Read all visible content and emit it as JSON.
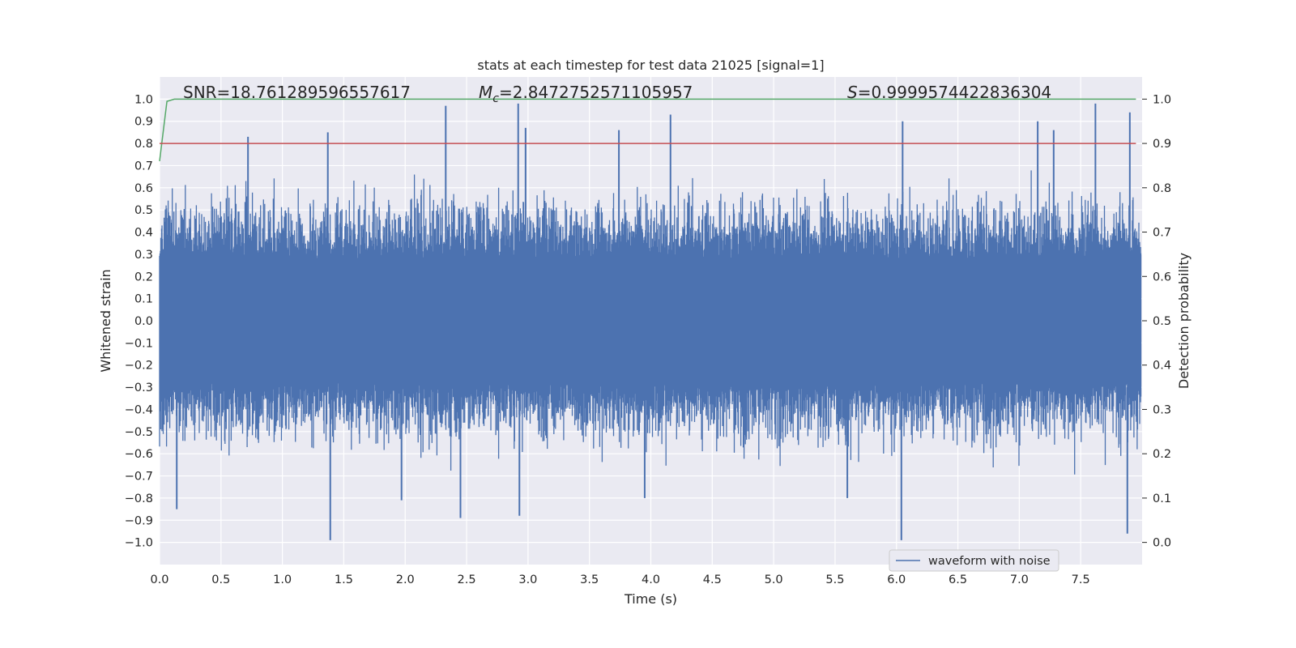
{
  "chart_data": {
    "type": "line",
    "title": "stats at each timestep for test data 21025 [signal=1]",
    "xlabel": "Time (s)",
    "ylabel": "Whitened strain",
    "ylabel_right": "Detection probability",
    "xlim": [
      0.0,
      8.0
    ],
    "ylim": [
      -1.1,
      1.1
    ],
    "ylim_right": [
      -0.05,
      1.05
    ],
    "xticks": [
      "0.0",
      "0.5",
      "1.0",
      "1.5",
      "2.0",
      "2.5",
      "3.0",
      "3.5",
      "4.0",
      "4.5",
      "5.0",
      "5.5",
      "6.0",
      "6.5",
      "7.0",
      "7.5"
    ],
    "yticks": [
      "−1.0",
      "−0.9",
      "−0.8",
      "−0.7",
      "−0.6",
      "−0.5",
      "−0.4",
      "−0.3",
      "−0.2",
      "−0.1",
      "0.0",
      "0.1",
      "0.2",
      "0.3",
      "0.4",
      "0.5",
      "0.6",
      "0.7",
      "0.8",
      "0.9",
      "1.0"
    ],
    "yticks_right": [
      "0.0",
      "0.1",
      "0.2",
      "0.3",
      "0.4",
      "0.5",
      "0.6",
      "0.7",
      "0.8",
      "0.9",
      "1.0"
    ],
    "grid": true,
    "legend_position": "lower-right",
    "annotations": {
      "snr": "SNR=18.761289596557617",
      "mc_prefix": "M",
      "mc_sub": "c",
      "mc_value": "=2.8472752571105957",
      "s_prefix": "S",
      "s_value": "=0.9999574422836304"
    },
    "series": [
      {
        "name": "waveform with noise",
        "axis": "left",
        "color": "#4c72b0",
        "description_values": {
          "x_range": [
            0.0,
            7.99
          ],
          "y_min": -0.99,
          "y_max": 0.98
        },
        "peaks": [
          {
            "x": 0.72,
            "y": 0.83
          },
          {
            "x": 1.37,
            "y": 0.85
          },
          {
            "x": 2.33,
            "y": 0.97
          },
          {
            "x": 2.92,
            "y": 0.98
          },
          {
            "x": 2.98,
            "y": 0.87
          },
          {
            "x": 3.74,
            "y": 0.86
          },
          {
            "x": 4.16,
            "y": 0.93
          },
          {
            "x": 6.05,
            "y": 0.9
          },
          {
            "x": 7.62,
            "y": 0.98
          },
          {
            "x": 7.9,
            "y": 0.94
          },
          {
            "x": 7.15,
            "y": 0.9
          },
          {
            "x": 7.28,
            "y": 0.86
          }
        ],
        "troughs": [
          {
            "x": 1.39,
            "y": -0.99
          },
          {
            "x": 6.04,
            "y": -0.99
          },
          {
            "x": 7.88,
            "y": -0.96
          },
          {
            "x": 0.14,
            "y": -0.85
          },
          {
            "x": 2.93,
            "y": -0.88
          },
          {
            "x": 2.45,
            "y": -0.89
          },
          {
            "x": 1.97,
            "y": -0.81
          },
          {
            "x": 3.95,
            "y": -0.8
          },
          {
            "x": 5.6,
            "y": -0.8
          }
        ]
      },
      {
        "name": "",
        "axis": "right",
        "color": "#55a868",
        "x": [
          0.0,
          0.06,
          0.12,
          7.95
        ],
        "y": [
          0.86,
          0.995,
          1.0,
          1.0
        ]
      },
      {
        "name": "",
        "axis": "right",
        "color": "#c44e52",
        "x": [
          0.0,
          7.95
        ],
        "y": [
          0.9,
          0.9
        ]
      }
    ]
  }
}
